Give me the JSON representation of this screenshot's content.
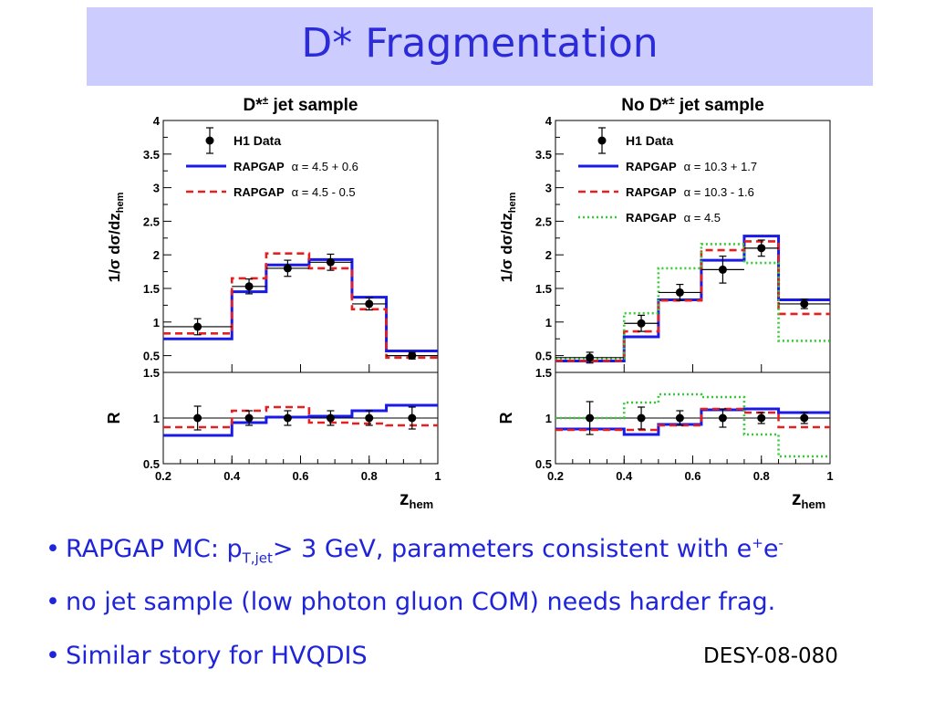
{
  "slide": {
    "title": "D* Fragmentation",
    "bullets": [
      {
        "pre": "RAPGAP MC: p",
        "sub": "T,jet",
        "post": "> 3 GeV, parameters consistent with e",
        "sup1": "+",
        "mid": "e",
        "sup2": "-"
      },
      {
        "text": "no jet sample (low photon gluon COM) needs harder frag."
      },
      {
        "text": "Similar story for HVQDIS"
      }
    ],
    "reference": "DESY-08-080"
  },
  "chart_data": [
    {
      "type": "line",
      "title": "D*± jet sample",
      "xlabel": "z",
      "xlabel_sub": "hem",
      "ylabel": "1/σ dσ/dz",
      "ylabel_sub": "hem",
      "ratio_ylabel": "R",
      "bin_edges": [
        0.2,
        0.4,
        0.5,
        0.625,
        0.75,
        0.85,
        1.0
      ],
      "xlim": [
        0.2,
        1.0
      ],
      "ylim": [
        0.25,
        4.0
      ],
      "ratio_ylim": [
        0.5,
        1.5
      ],
      "x_ticks": [
        "0.2",
        "0.4",
        "0.6",
        "0.8",
        "1"
      ],
      "y_ticks": [
        "0.5",
        "1",
        "1.5",
        "2",
        "2.5",
        "3",
        "3.5",
        "4"
      ],
      "ratio_ticks": [
        "0.5",
        "1",
        "1.5"
      ],
      "data": {
        "name": "H1 Data",
        "x": [
          0.3,
          0.45,
          0.5625,
          0.6875,
          0.8,
          0.925
        ],
        "y": [
          0.93,
          1.53,
          1.8,
          1.89,
          1.27,
          0.5
        ],
        "yerr": [
          0.12,
          0.11,
          0.12,
          0.12,
          0.09,
          0.05
        ],
        "ratio": [
          1.0,
          1.0,
          1.0,
          1.0,
          1.0,
          1.0
        ],
        "ratio_err": [
          0.13,
          0.08,
          0.08,
          0.08,
          0.08,
          0.12
        ]
      },
      "series": [
        {
          "name": "RAPGAP",
          "label": "RAPGAP",
          "param": "α = 4.5 + 0.6",
          "style": "solid",
          "color": "#1a1ae6",
          "values": [
            0.75,
            1.45,
            1.85,
            1.93,
            1.37,
            0.57
          ],
          "ratio": [
            0.81,
            0.95,
            1.01,
            1.02,
            1.08,
            1.14
          ]
        },
        {
          "name": "RAPGAP",
          "label": "RAPGAP",
          "param": "α = 4.5 - 0.5",
          "style": "dashed",
          "color": "#e62020",
          "values": [
            0.83,
            1.65,
            2.02,
            1.8,
            1.19,
            0.47
          ],
          "ratio": [
            0.9,
            1.08,
            1.12,
            0.95,
            0.94,
            0.92
          ]
        }
      ]
    },
    {
      "type": "line",
      "title": "No D*± jet sample",
      "xlabel": "z",
      "xlabel_sub": "hem",
      "ylabel": "1/σ dσ/dz",
      "ylabel_sub": "hem",
      "ratio_ylabel": "R",
      "bin_edges": [
        0.2,
        0.4,
        0.5,
        0.625,
        0.75,
        0.85,
        1.0
      ],
      "xlim": [
        0.2,
        1.0
      ],
      "ylim": [
        0.25,
        4.0
      ],
      "ratio_ylim": [
        0.5,
        1.5
      ],
      "x_ticks": [
        "0.2",
        "0.4",
        "0.6",
        "0.8",
        "1"
      ],
      "y_ticks": [
        "0.5",
        "1",
        "1.5",
        "2",
        "2.5",
        "3",
        "3.5",
        "4"
      ],
      "ratio_ticks": [
        "0.5",
        "1",
        "1.5"
      ],
      "data": {
        "name": "H1 Data",
        "x": [
          0.3,
          0.45,
          0.5625,
          0.6875,
          0.8,
          0.925
        ],
        "y": [
          0.47,
          0.98,
          1.44,
          1.78,
          2.1,
          1.27
        ],
        "yerr": [
          0.08,
          0.12,
          0.12,
          0.2,
          0.12,
          0.07
        ],
        "ratio": [
          1.0,
          1.0,
          1.0,
          1.0,
          1.0,
          1.0
        ],
        "ratio_err": [
          0.18,
          0.12,
          0.08,
          0.1,
          0.06,
          0.06
        ]
      },
      "series": [
        {
          "name": "RAPGAP",
          "label": "RAPGAP",
          "param": "α = 10.3 + 1.7",
          "style": "solid",
          "color": "#1a1ae6",
          "values": [
            0.42,
            0.78,
            1.33,
            1.92,
            2.28,
            1.33
          ],
          "ratio": [
            0.88,
            0.82,
            0.93,
            1.09,
            1.1,
            1.06
          ]
        },
        {
          "name": "RAPGAP",
          "label": "RAPGAP",
          "param": "α = 10.3 - 1.6",
          "style": "dashed",
          "color": "#e62020",
          "values": [
            0.42,
            0.86,
            1.32,
            2.07,
            2.2,
            1.12
          ],
          "ratio": [
            0.87,
            0.87,
            0.92,
            1.1,
            1.06,
            0.9
          ]
        },
        {
          "name": "RAPGAP",
          "label": "RAPGAP",
          "param": "α = 4.5",
          "style": "dotted",
          "color": "#33cc33",
          "values": [
            0.46,
            1.13,
            1.8,
            2.16,
            1.88,
            0.72
          ],
          "ratio": [
            1.0,
            1.17,
            1.26,
            1.23,
            0.82,
            0.58
          ]
        }
      ]
    }
  ]
}
